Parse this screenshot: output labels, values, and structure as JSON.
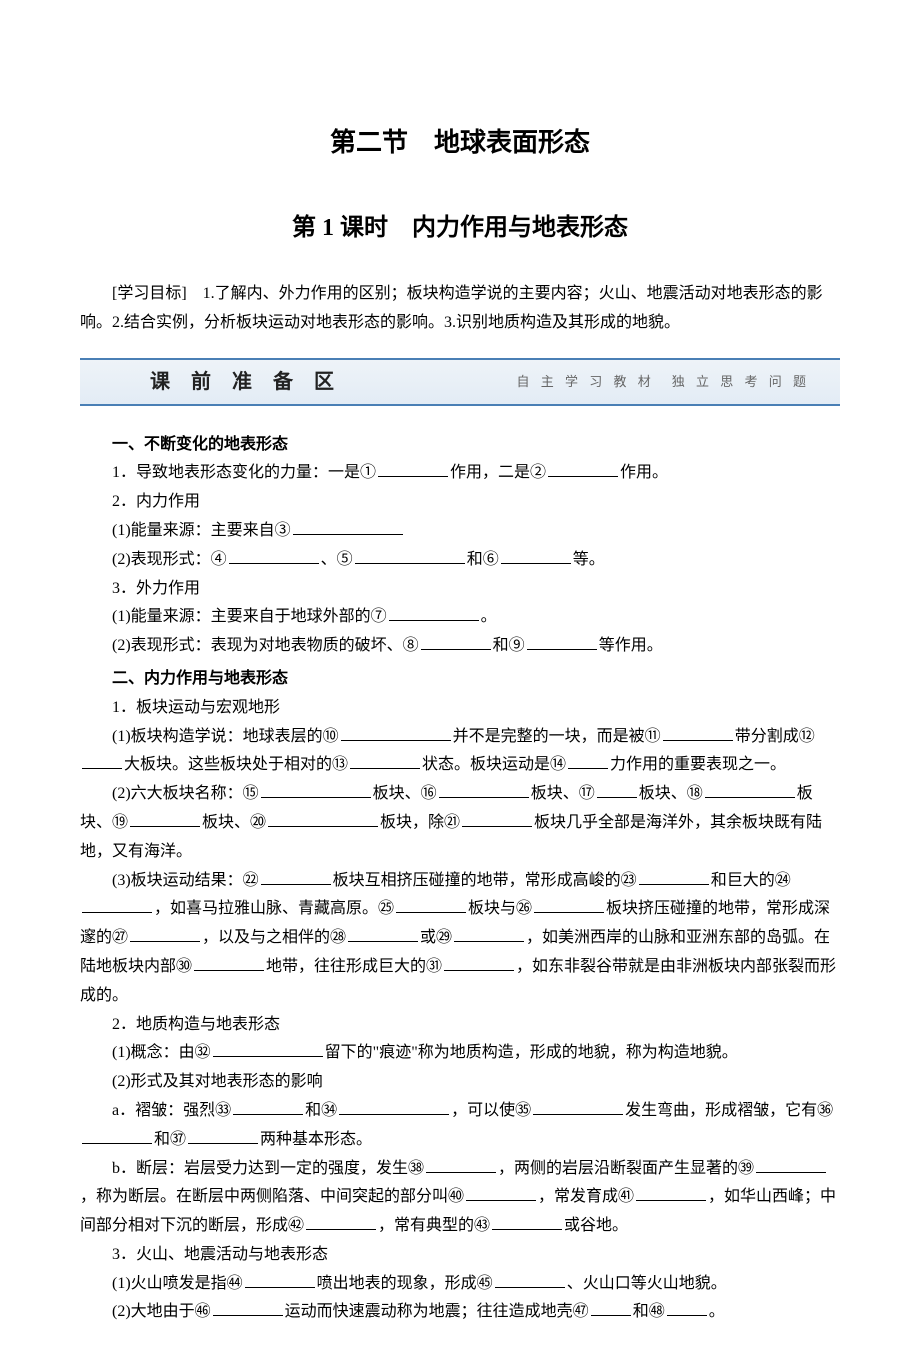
{
  "title_main": "第二节　地球表面形态",
  "title_sub": "第 1 课时　内力作用与地表形态",
  "objectives_label": "[学习目标]",
  "objectives_text": "　1.了解内、外力作用的区别；板块构造学说的主要内容；火山、地震活动对地表形态的影响。2.结合实例，分析板块运动对地表形态的影响。3.识别地质构造及其形成的地貌。",
  "banner_title": "课 前 准 备 区",
  "banner_sub": "自 主 学 习 教 材　独 立 思 考 问 题",
  "sec1_title": "一、不断变化的地表形态",
  "s1_l1a": "1．导致地表形态变化的力量：一是①",
  "s1_l1b": "作用，二是②",
  "s1_l1c": "作用。",
  "s1_l2": "2．内力作用",
  "s1_l3a": "(1)能量来源：主要来自③",
  "s1_l4a": "(2)表现形式：④",
  "s1_l4b": "、⑤",
  "s1_l4c": "和⑥",
  "s1_l4d": "等。",
  "s1_l5": "3．外力作用",
  "s1_l6a": "(1)能量来源：主要来自于地球外部的⑦",
  "s1_l6b": "。",
  "s1_l7a": "(2)表现形式：表现为对地表物质的破坏、⑧",
  "s1_l7b": "和⑨",
  "s1_l7c": "等作用。",
  "sec2_title": "二、内力作用与地表形态",
  "s2_l1": "1．板块运动与宏观地形",
  "s2_l2a": "(1)板块构造学说：地球表层的⑩",
  "s2_l2b": "并不是完整的一块，而是被⑪",
  "s2_l2c": "带分割成⑫",
  "s2_l2d": "大板块。这些板块处于相对的⑬",
  "s2_l2e": "状态。板块运动是⑭",
  "s2_l2f": "力作用的重要表现之一。",
  "s2_l3a": "(2)六大板块名称：⑮",
  "s2_l3b": "板块、⑯",
  "s2_l3c": "板块、⑰",
  "s2_l3d": "板块、⑱",
  "s2_l3e": "板块、⑲",
  "s2_l3f": "板块、⑳",
  "s2_l3g": "板块，除㉑",
  "s2_l3h": "板块几乎全部是海洋外，其余板块既有陆地，又有海洋。",
  "s2_l4a": "(3)板块运动结果：㉒",
  "s2_l4b": "板块互相挤压碰撞的地带，常形成高峻的㉓",
  "s2_l4c": "和巨大的㉔",
  "s2_l4d": "，如喜马拉雅山脉、青藏高原。㉕",
  "s2_l4e": "板块与㉖",
  "s2_l4f": "板块挤压碰撞的地带，常形成深邃的㉗",
  "s2_l4g": "，以及与之相伴的㉘",
  "s2_l4h": "或㉙",
  "s2_l4i": "，如美洲西岸的山脉和亚洲东部的岛弧。在陆地板块内部㉚",
  "s2_l4j": "地带，往往形成巨大的㉛",
  "s2_l4k": "，如东非裂谷带就是由非洲板块内部张裂而形成的。",
  "s2_l5": "2．地质构造与地表形态",
  "s2_l6a": "(1)概念：由㉜",
  "s2_l6b": "留下的\"痕迹\"称为地质构造，形成的地貌，称为构造地貌。",
  "s2_l7": "(2)形式及其对地表形态的影响",
  "s2_l8a": "a．褶皱：强烈㉝",
  "s2_l8b": "和㉞",
  "s2_l8c": "，可以使㉟",
  "s2_l8d": "发生弯曲，形成褶皱，它有㊱",
  "s2_l8e": "和㊲",
  "s2_l8f": "两种基本形态。",
  "s2_l9a": "b．断层：岩层受力达到一定的强度，发生㊳",
  "s2_l9b": "，两侧的岩层沿断裂面产生显著的㊴",
  "s2_l9c": "，称为断层。在断层中两侧陷落、中间突起的部分叫㊵",
  "s2_l9d": "，常发育成㊶",
  "s2_l9e": "，如华山西峰；中间部分相对下沉的断层，形成㊷",
  "s2_l9f": "，常有典型的㊸",
  "s2_l9g": "或谷地。",
  "s2_l10": "3．火山、地震活动与地表形态",
  "s2_l11a": "(1)火山喷发是指㊹",
  "s2_l11b": "喷出地表的现象，形成㊺",
  "s2_l11c": "、火山口等火山地貌。",
  "s2_l12a": "(2)大地由于㊻",
  "s2_l12b": "运动而快速震动称为地震；往往造成地壳㊼",
  "s2_l12c": "和㊽",
  "s2_l12d": "。"
}
